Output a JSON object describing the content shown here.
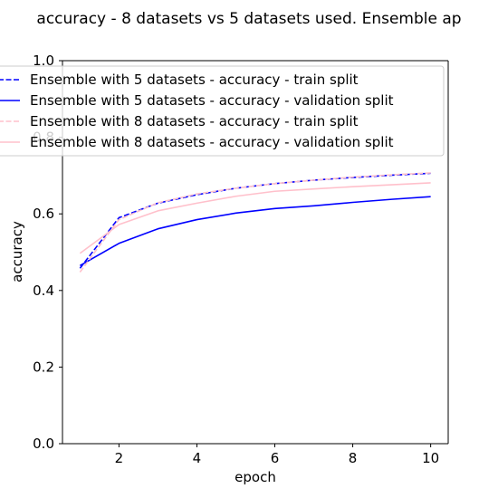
{
  "chart_data": {
    "type": "line",
    "title": "accuracy - 8 datasets vs 5 datasets used. Ensemble  ap",
    "xlabel": "epoch",
    "ylabel": "accuracy",
    "xlim": [
      0.55,
      10.45
    ],
    "ylim": [
      0.0,
      1.0
    ],
    "xticks": [
      2,
      4,
      6,
      8,
      10
    ],
    "yticks": [
      0.0,
      0.2,
      0.4,
      0.6,
      0.8,
      1.0
    ],
    "xtick_labels": [
      "2",
      "4",
      "6",
      "8",
      "10"
    ],
    "ytick_labels": [
      "0.0",
      "0.2",
      "0.4",
      "0.6",
      "0.8",
      "1.0"
    ],
    "grid": false,
    "legend_position": "top-left",
    "x": [
      1,
      2,
      3,
      4,
      5,
      6,
      7,
      8,
      9,
      10
    ],
    "series": [
      {
        "name": "Ensemble with 5 datasets - accuracy - train split",
        "color": "#0000ff",
        "style": "dashed",
        "values": [
          0.458,
          0.59,
          0.628,
          0.65,
          0.667,
          0.679,
          0.688,
          0.695,
          0.701,
          0.706
        ]
      },
      {
        "name": "Ensemble with 5 datasets - accuracy - validation split",
        "color": "#0000ff",
        "style": "solid",
        "values": [
          0.465,
          0.523,
          0.561,
          0.585,
          0.602,
          0.614,
          0.621,
          0.63,
          0.638,
          0.645
        ]
      },
      {
        "name": "Ensemble with 8 datasets - accuracy - train split",
        "color": "#ffc0cb",
        "style": "dashed",
        "values": [
          0.448,
          0.585,
          0.629,
          0.652,
          0.667,
          0.679,
          0.688,
          0.696,
          0.702,
          0.707
        ]
      },
      {
        "name": "Ensemble with 8 datasets - accuracy - validation split",
        "color": "#ffc0cb",
        "style": "solid",
        "values": [
          0.497,
          0.572,
          0.608,
          0.628,
          0.646,
          0.659,
          0.665,
          0.671,
          0.676,
          0.681
        ]
      }
    ]
  }
}
